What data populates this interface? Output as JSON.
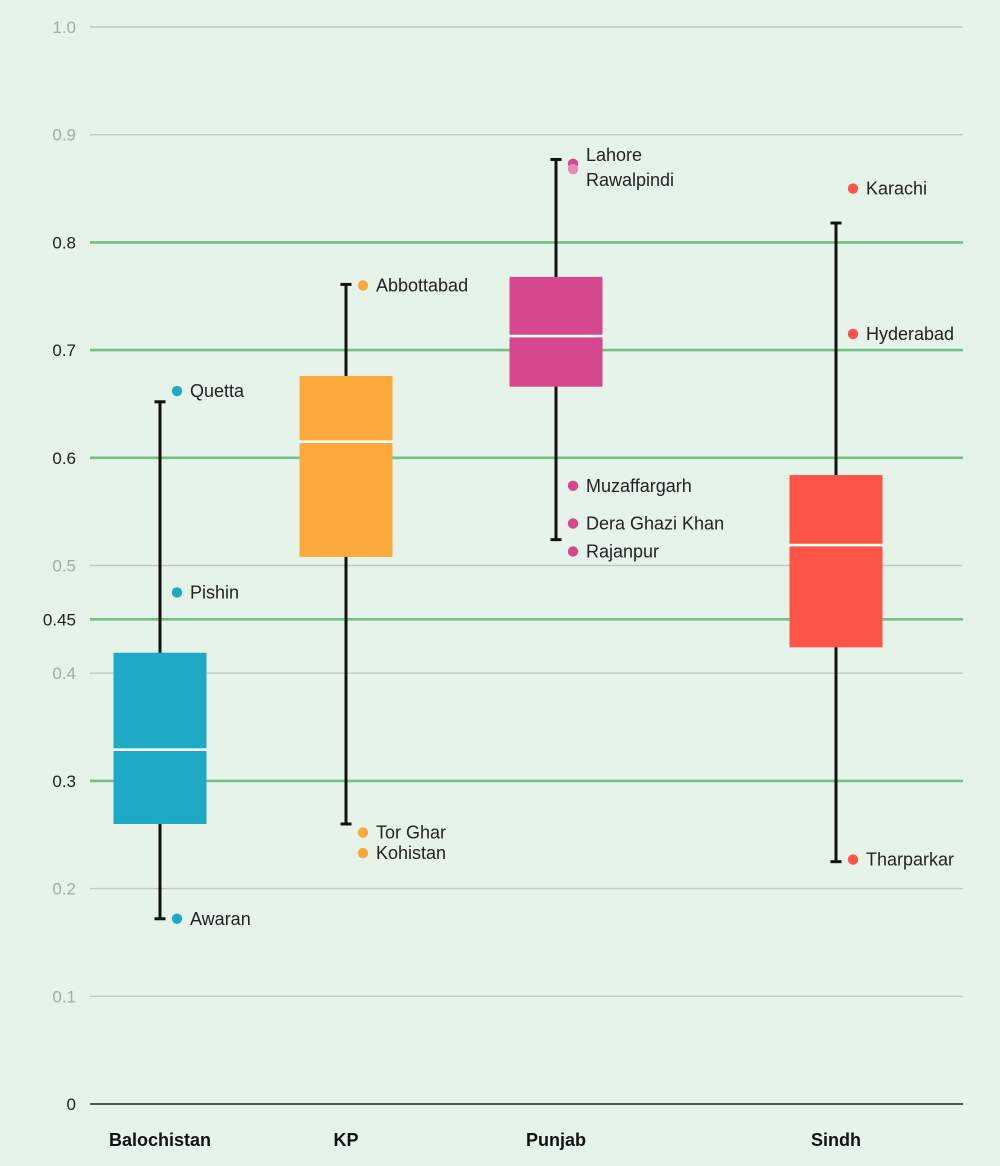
{
  "chart_data": {
    "type": "boxplot",
    "title": "",
    "xlabel": "",
    "ylabel": "",
    "ylim": [
      0,
      1.0
    ],
    "y_ticks": [
      "0",
      "0.1",
      "0.2",
      "0.3",
      "0.4",
      "0.45",
      "0.5",
      "0.6",
      "0.7",
      "0.8",
      "0.9",
      "1.0"
    ],
    "y_tick_values": [
      0,
      0.1,
      0.2,
      0.3,
      0.4,
      0.45,
      0.5,
      0.6,
      0.7,
      0.8,
      0.9,
      1.0
    ],
    "highlighted_gridlines": [
      0.3,
      0.45,
      0.6,
      0.7,
      0.8
    ],
    "grid": true,
    "categories": [
      "Balochistan",
      "KP",
      "Punjab",
      "Sindh"
    ],
    "series": [
      {
        "category": "Balochistan",
        "color": "#1eaac6",
        "whisker_low": 0.172,
        "q1": 0.26,
        "median": 0.329,
        "q3": 0.419,
        "whisker_high": 0.652,
        "points": [
          {
            "label": "Quetta",
            "value": 0.662
          },
          {
            "label": "Pishin",
            "value": 0.475
          },
          {
            "label": "Awaran",
            "value": 0.172
          }
        ]
      },
      {
        "category": "KP",
        "color": "#fba93b",
        "whisker_low": 0.26,
        "q1": 0.508,
        "median": 0.615,
        "q3": 0.676,
        "whisker_high": 0.761,
        "points": [
          {
            "label": "Abbottabad",
            "value": 0.76
          },
          {
            "label": "Tor Ghar",
            "value": 0.252
          },
          {
            "label": "Kohistan",
            "value": 0.233
          }
        ]
      },
      {
        "category": "Punjab",
        "color": "#d6478e",
        "whisker_low": 0.524,
        "q1": 0.666,
        "median": 0.713,
        "q3": 0.768,
        "whisker_high": 0.877,
        "points": [
          {
            "label": "Lahore",
            "value": 0.873
          },
          {
            "label": "Rawalpindi",
            "value": 0.868
          },
          {
            "label": "Muzaffargarh",
            "value": 0.574
          },
          {
            "label": "Dera Ghazi Khan",
            "value": 0.539
          },
          {
            "label": "Rajanpur",
            "value": 0.513
          }
        ]
      },
      {
        "category": "Sindh",
        "color": "#fc5547",
        "whisker_low": 0.225,
        "q1": 0.424,
        "median": 0.519,
        "q3": 0.584,
        "whisker_high": 0.818,
        "points": [
          {
            "label": "Karachi",
            "value": 0.85
          },
          {
            "label": "Hyderabad",
            "value": 0.715
          },
          {
            "label": "Tharparkar",
            "value": 0.227
          }
        ]
      }
    ]
  }
}
